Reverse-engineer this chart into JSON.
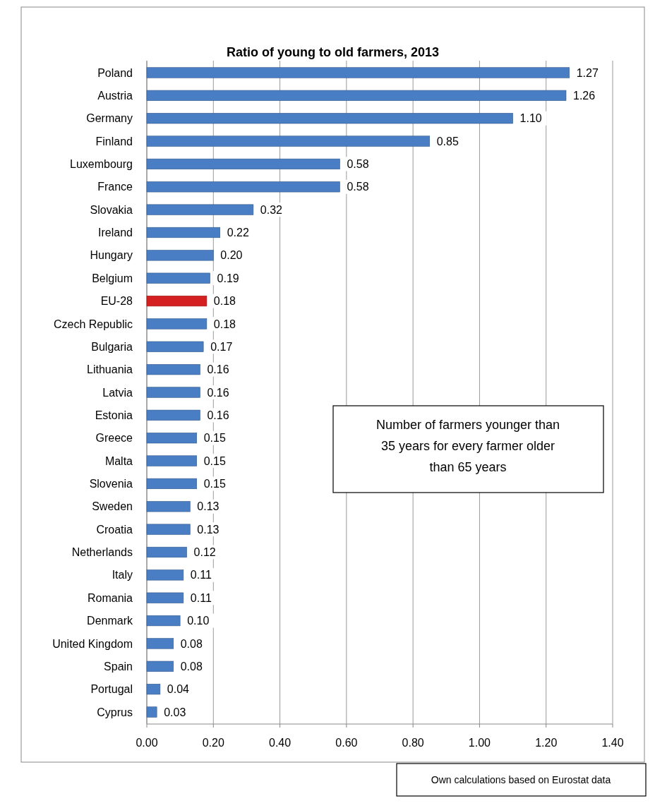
{
  "chart_data": {
    "type": "bar",
    "orientation": "horizontal",
    "title": "Ratio of young to old farmers, 2013",
    "categories": [
      "Poland",
      "Austria",
      "Germany",
      "Finland",
      "Luxembourg",
      "France",
      "Slovakia",
      "Ireland",
      "Hungary",
      "Belgium",
      "EU-28",
      "Czech Republic",
      "Bulgaria",
      "Lithuania",
      "Latvia",
      "Estonia",
      "Greece",
      "Malta",
      "Slovenia",
      "Sweden",
      "Croatia",
      "Netherlands",
      "Italy",
      "Romania",
      "Denmark",
      "United Kingdom",
      "Spain",
      "Portugal",
      "Cyprus"
    ],
    "values": [
      1.27,
      1.26,
      1.1,
      0.85,
      0.58,
      0.58,
      0.32,
      0.22,
      0.2,
      0.19,
      0.18,
      0.18,
      0.17,
      0.16,
      0.16,
      0.16,
      0.15,
      0.15,
      0.15,
      0.13,
      0.13,
      0.12,
      0.11,
      0.11,
      0.1,
      0.08,
      0.08,
      0.04,
      0.03
    ],
    "value_labels": [
      "1.27",
      "1.26",
      "1.10",
      "0.85",
      "0.58",
      "0.58",
      "0.32",
      "0.22",
      "0.20",
      "0.19",
      "0.18",
      "0.18",
      "0.17",
      "0.16",
      "0.16",
      "0.16",
      "0.15",
      "0.15",
      "0.15",
      "0.13",
      "0.13",
      "0.12",
      "0.11",
      "0.11",
      "0.10",
      "0.08",
      "0.08",
      "0.04",
      "0.03"
    ],
    "colors": [
      "#4a7ec4",
      "#4a7ec4",
      "#4a7ec4",
      "#4a7ec4",
      "#4a7ec4",
      "#4a7ec4",
      "#4a7ec4",
      "#4a7ec4",
      "#4a7ec4",
      "#4a7ec4",
      "#d42020",
      "#4a7ec4",
      "#4a7ec4",
      "#4a7ec4",
      "#4a7ec4",
      "#4a7ec4",
      "#4a7ec4",
      "#4a7ec4",
      "#4a7ec4",
      "#4a7ec4",
      "#4a7ec4",
      "#4a7ec4",
      "#4a7ec4",
      "#4a7ec4",
      "#4a7ec4",
      "#4a7ec4",
      "#4a7ec4",
      "#4a7ec4",
      "#4a7ec4"
    ],
    "xlim": [
      0,
      1.4
    ],
    "xticks": [
      {
        "value": 0,
        "label": "0.00"
      },
      {
        "value": 0.2,
        "label": "0.20"
      },
      {
        "value": 0.4,
        "label": "0.40"
      },
      {
        "value": 0.6,
        "label": "0.60"
      },
      {
        "value": 0.8,
        "label": "0.80"
      },
      {
        "value": 1.0,
        "label": "1.00"
      },
      {
        "value": 1.2,
        "label": "1.20"
      },
      {
        "value": 1.4,
        "label": "1.40"
      }
    ],
    "grid": "x",
    "annotations": [
      "Number of farmers younger than 35 years for every farmer older than 65 years",
      "Own calculations based on Eurostat data"
    ]
  }
}
